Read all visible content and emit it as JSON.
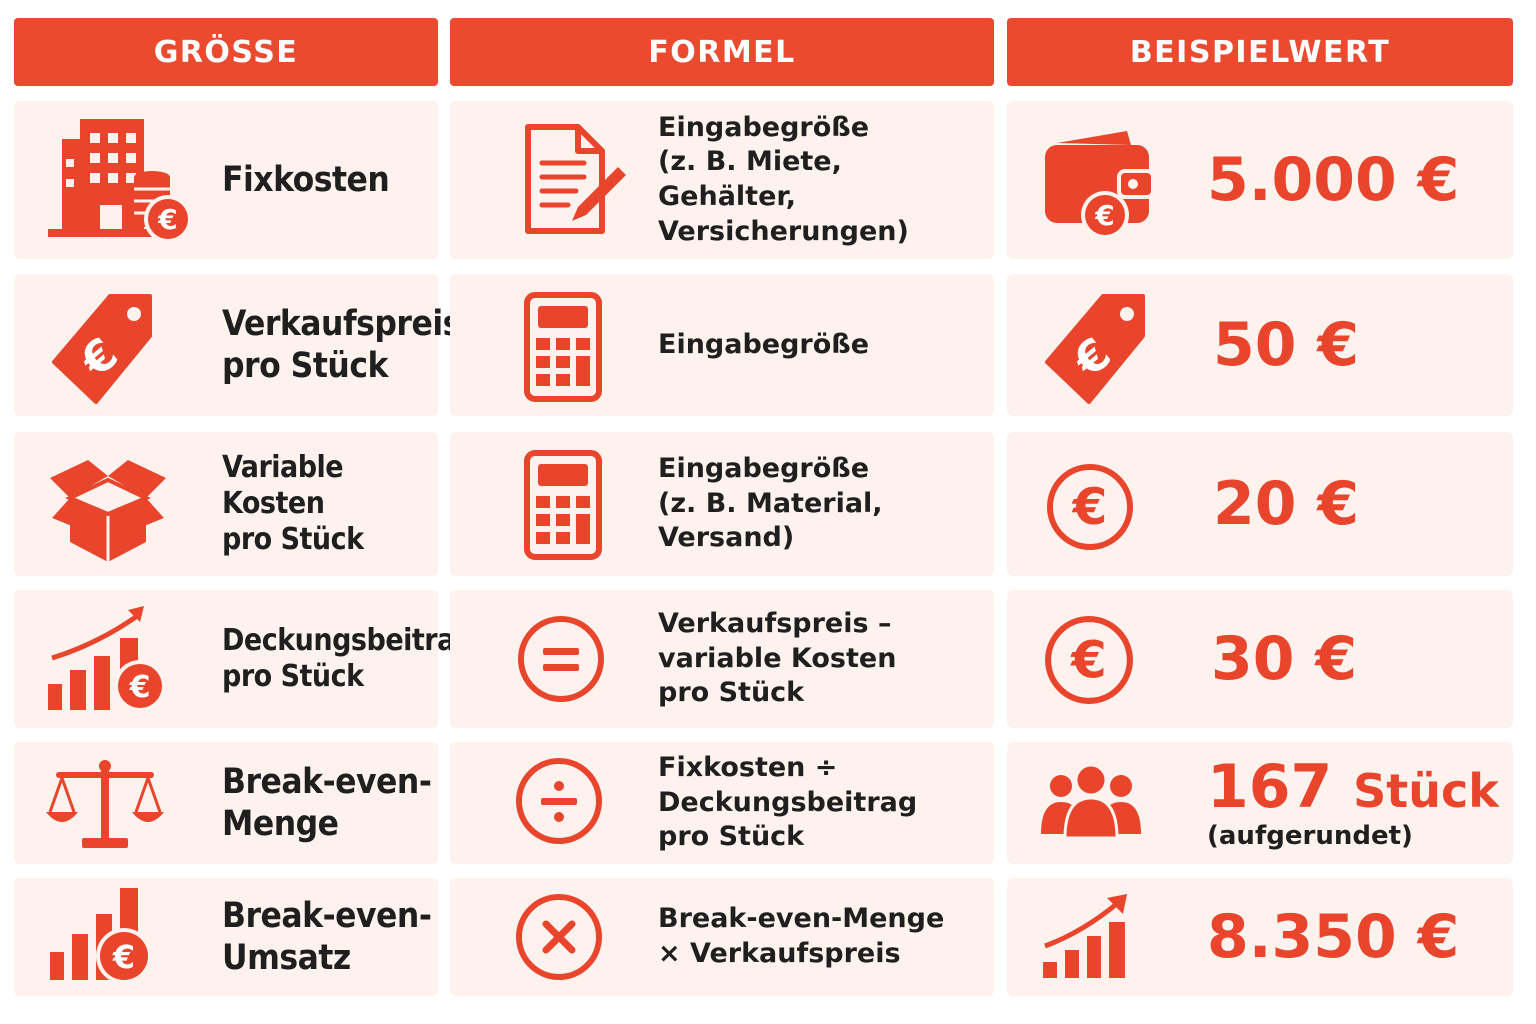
{
  "headers": {
    "groesse": "GRÖSSE",
    "formel": "FORMEL",
    "beispielwert": "BEISPIELWERT"
  },
  "theme": {
    "accent": "#ec4a2f",
    "cell_bg": "#fdf2ee"
  },
  "rows": [
    {
      "groesse": "Fixkosten",
      "groesse_icon": "building-coins-icon",
      "formel": "Eingabegröße\n(z. B. Miete,\nGehälter,\nVersicherungen)",
      "formel_icon": "document-pencil-icon",
      "wert": "5.000 €",
      "wert_icon": "wallet-euro-icon"
    },
    {
      "groesse": "Verkaufspreis\npro Stück",
      "groesse_icon": "euro-price-tag-icon",
      "formel": "Eingabegröße",
      "formel_icon": "calculator-icon",
      "wert": "50 €",
      "wert_icon": "euro-price-tag-icon"
    },
    {
      "groesse": "Variable Kosten\npro Stück",
      "groesse_icon": "open-box-icon",
      "formel": "Eingabegröße\n(z. B. Material,\nVersand)",
      "formel_icon": "calculator-icon",
      "wert": "20 €",
      "wert_icon": "euro-circle-icon"
    },
    {
      "groesse": "Deckungsbeitrag\npro Stück",
      "groesse_icon": "growth-chart-euro-icon",
      "formel": "Verkaufspreis –\nvariable Kosten\npro Stück",
      "formel_icon": "equals-circle-icon",
      "wert": "30 €",
      "wert_icon": "euro-circle-icon"
    },
    {
      "groesse": "Break-even-\nMenge",
      "groesse_icon": "balance-scale-icon",
      "formel": "Fixkosten ÷\nDeckungsbeitrag\npro Stück",
      "formel_icon": "divide-circle-icon",
      "wert": "167",
      "wert_unit": "Stück",
      "wert_note": "(aufgerundet)",
      "wert_icon": "people-group-icon"
    },
    {
      "groesse": "Break-even-\nUmsatz",
      "groesse_icon": "bar-chart-euro-icon",
      "formel": "Break-even-Menge\n× Verkaufspreis",
      "formel_icon": "multiply-circle-icon",
      "wert": "8.350 €",
      "wert_icon": "growth-chart-icon"
    }
  ]
}
